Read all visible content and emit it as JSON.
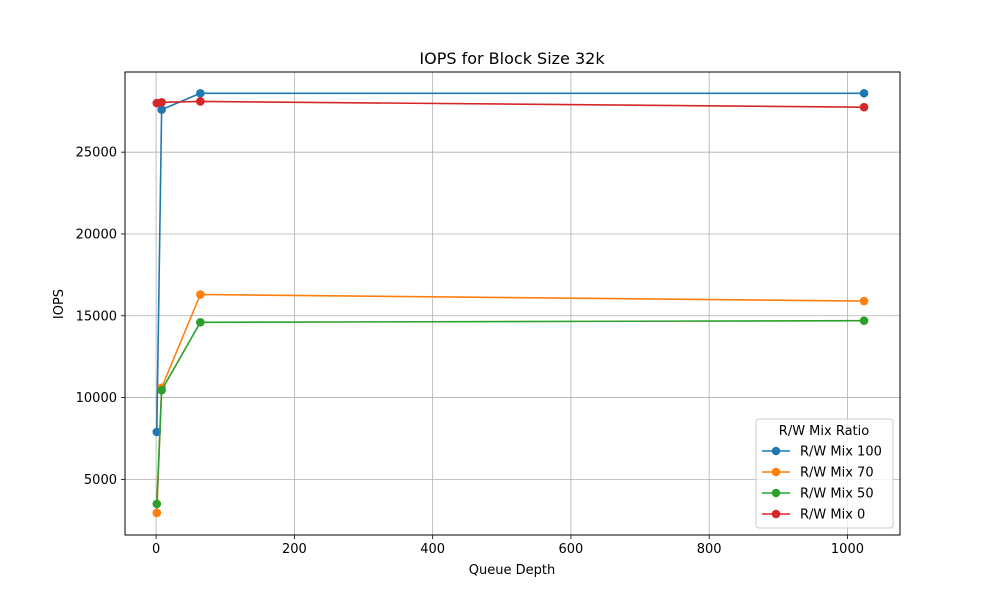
{
  "chart_data": {
    "type": "line",
    "title": "IOPS for Block Size 32k",
    "xlabel": "Queue Depth",
    "ylabel": "IOPS",
    "xlim": [
      -45,
      1076
    ],
    "ylim": [
      1600,
      29900
    ],
    "xticks": [
      0,
      200,
      400,
      600,
      800,
      1000
    ],
    "yticks": [
      5000,
      10000,
      15000,
      20000,
      25000
    ],
    "grid": true,
    "legend": {
      "title": "R/W Mix Ratio",
      "placement": "lower right"
    },
    "x": [
      1,
      8,
      64,
      1024
    ],
    "series": [
      {
        "name": "R/W Mix 100",
        "color": "#1f77b4",
        "values": [
          7900,
          27600,
          28600,
          28600
        ]
      },
      {
        "name": "R/W Mix 70",
        "color": "#ff7f0e",
        "values": [
          2950,
          10600,
          16300,
          15900
        ]
      },
      {
        "name": "R/W Mix 50",
        "color": "#2ca02c",
        "values": [
          3500,
          10450,
          14600,
          14700
        ]
      },
      {
        "name": "R/W Mix 0",
        "color": "#d62728",
        "values": [
          28000,
          28050,
          28100,
          27750
        ]
      }
    ]
  }
}
